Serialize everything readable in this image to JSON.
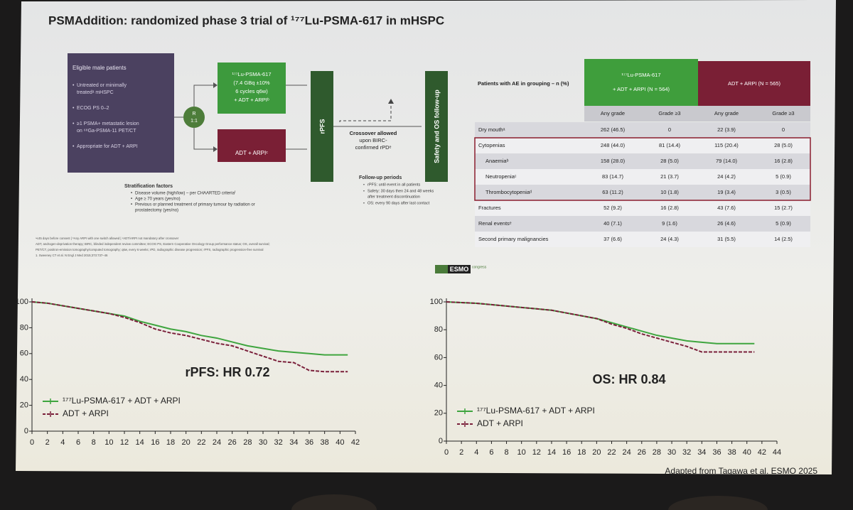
{
  "title": "PSMAddition: randomized phase 3 trial of ¹⁷⁷Lu-PSMA-617 in mHSPC",
  "diagram": {
    "eligibility": {
      "heading": "Eligible male patients",
      "items": [
        [
          "Untreated or minimally",
          "treatedᵃ mHSPC"
        ],
        [
          "ECOG PS 0–2"
        ],
        [
          "≥1 PSMA+ metastatic lesion",
          "on ⁶⁸Ga-PSMA-11 PET/CT"
        ],
        [
          "Appropriate for ADT + ARPI"
        ]
      ]
    },
    "randomization": [
      "R",
      "1:1"
    ],
    "arm_1": [
      "¹⁷⁷Lu-PSMA-617",
      "(7.4 GBq ±10%",
      "6 cycles q6w)",
      "+ ADT + ARPIᵇ"
    ],
    "arm_2": "ADT + ARPIᶜ",
    "rpfs_bar": "rPFS",
    "safety_bar": "Safety and OS follow-up",
    "crossover": [
      "Crossover allowed",
      "upon BIRC-",
      "confirmed rPDᵉ"
    ],
    "stratification": {
      "heading": "Stratification factors",
      "items": [
        [
          "Disease volume (high/low) – per CHAARTED criteriaᶠ"
        ],
        [
          "Age ≥ 70 years (yes/no)"
        ],
        [
          "Previous or planned treatment of primary tumour by radiation or",
          "prostatectomy (yes/no)"
        ]
      ]
    },
    "follow_up": {
      "heading": "Follow-up periods",
      "items": [
        [
          "rPFS:  until event in all patients"
        ],
        [
          "Safety:  30 days then 24 and 48 weeks",
          "after treatment discontinuation"
        ],
        [
          "OS:     every 90 days after last contact"
        ]
      ]
    },
    "footnotes": [
      "ᵃ≤45 days before consent | ᵇAny ARPI with one switch allowed | ᶜADT/ARPI not mandatory after crossover",
      "ADT, androgen-deprivation therapy; BIRC, blinded independent review committee; ECOG PS, Eastern Cooperative Oncology Group performance status; OS, overall survival;",
      "PET/CT, positron-emission tomography/computed tomography; q6w, every 6 weeks; rPD, radiographic disease progression; rPFS, radiographic progression-free survival",
      "1. Sweeney CT et al. N Engl J Med 2015;373:737–46"
    ]
  },
  "table": {
    "corner": "Patients with AE in grouping – n (%)",
    "groups": [
      [
        "¹⁷⁷Lu-PSMA-617",
        "+ ADT + ARPI (N = 564)"
      ],
      [
        "ADT + ARPI (N = 565)"
      ]
    ],
    "columns": [
      "Any grade",
      "Grade ≥3",
      "Any grade",
      "Grade ≥3"
    ],
    "rows": [
      {
        "name": "Dry mouthᵃ",
        "cells": [
          "262 (46.5)",
          "0",
          "22 (3.9)",
          "0"
        ]
      },
      {
        "name": "Cytopenias",
        "cells": [
          "248 (44.0)",
          "81 (14.4)",
          "115 (20.4)",
          "28 (5.0)"
        ]
      },
      {
        "name": "Anaemiaᵇ",
        "cells": [
          "158 (28.0)",
          "28 (5.0)",
          "79 (14.0)",
          "16 (2.8)"
        ]
      },
      {
        "name": "Neutropeniaᶜ",
        "cells": [
          "83 (14.7)",
          "21 (3.7)",
          "24 (4.2)",
          "5 (0.9)"
        ]
      },
      {
        "name": "Thrombocytopeniaᵈ",
        "cells": [
          "63 (11.2)",
          "10 (1.8)",
          "19 (3.4)",
          "3 (0.5)"
        ]
      },
      {
        "name": "Fractures",
        "cells": [
          "52 (9.2)",
          "16 (2.8)",
          "43 (7.6)",
          "15 (2.7)"
        ]
      },
      {
        "name": "Renal eventsᵉ",
        "cells": [
          "40 (7.1)",
          "9 (1.6)",
          "26 (4.6)",
          "5 (0.9)"
        ]
      },
      {
        "name": "Second primary malignancies",
        "cells": [
          "37 (6.6)",
          "24 (4.3)",
          "31 (5.5)",
          "14 (2.5)"
        ]
      }
    ]
  },
  "logo": [
    "ESMO",
    "congress"
  ],
  "credit": "Adapted from Tagawa et al. ESMO 2025",
  "chart_data": [
    {
      "type": "line",
      "annotation": "rPFS: HR 0.72",
      "x": [
        0,
        2,
        4,
        6,
        8,
        10,
        12,
        14,
        16,
        18,
        20,
        22,
        24,
        26,
        28,
        30,
        32,
        34,
        36,
        38,
        40,
        41
      ],
      "xlim": [
        0,
        42
      ],
      "xticks": [
        0,
        2,
        4,
        6,
        8,
        10,
        12,
        14,
        16,
        18,
        20,
        22,
        24,
        26,
        28,
        30,
        32,
        34,
        36,
        38,
        40,
        42
      ],
      "ylim": [
        0,
        100
      ],
      "yticks": [
        0,
        20,
        40,
        60,
        80,
        100
      ],
      "legend": "lower left",
      "series": [
        {
          "name": "¹⁷⁷Lu-PSMA-617 + ADT + ARPI",
          "color": "#3fa53f",
          "style": "solid",
          "values": [
            100,
            99,
            97,
            95,
            93,
            91,
            89,
            85,
            82,
            79,
            77,
            74,
            72,
            69,
            66,
            64,
            62,
            61,
            60,
            59,
            59,
            59
          ]
        },
        {
          "name": "ADT + ARPI",
          "color": "#7a1f3a",
          "style": "dashed",
          "values": [
            100,
            99,
            97,
            95,
            93,
            91,
            88,
            84,
            79,
            76,
            74,
            71,
            68,
            66,
            62,
            58,
            54,
            53,
            47,
            46,
            46,
            46
          ]
        }
      ]
    },
    {
      "type": "line",
      "annotation": "OS: HR 0.84",
      "x": [
        0,
        2,
        4,
        6,
        8,
        10,
        12,
        14,
        16,
        18,
        20,
        22,
        24,
        26,
        28,
        30,
        32,
        34,
        36,
        38,
        40,
        41
      ],
      "xlim": [
        0,
        44
      ],
      "xticks": [
        0,
        2,
        4,
        6,
        8,
        10,
        12,
        14,
        16,
        18,
        20,
        22,
        24,
        26,
        28,
        30,
        32,
        34,
        36,
        38,
        40,
        42,
        44
      ],
      "ylim": [
        0,
        100
      ],
      "yticks": [
        0,
        20,
        40,
        60,
        80,
        100
      ],
      "legend": "lower left",
      "series": [
        {
          "name": "¹⁷⁷Lu-PSMA-617 + ADT + ARPI",
          "color": "#3fa53f",
          "style": "solid",
          "values": [
            100,
            99.5,
            99,
            98,
            97,
            96,
            95,
            94,
            92,
            90,
            88,
            85,
            82,
            79,
            76,
            74,
            72,
            71,
            70,
            70,
            70,
            70
          ]
        },
        {
          "name": "ADT + ARPI",
          "color": "#7a1f3a",
          "style": "dashed",
          "values": [
            100,
            99.5,
            99,
            98,
            97,
            96,
            95,
            94,
            92,
            90,
            88,
            84,
            81,
            77,
            74,
            71,
            68,
            64,
            64,
            64,
            64,
            64
          ]
        }
      ]
    }
  ]
}
